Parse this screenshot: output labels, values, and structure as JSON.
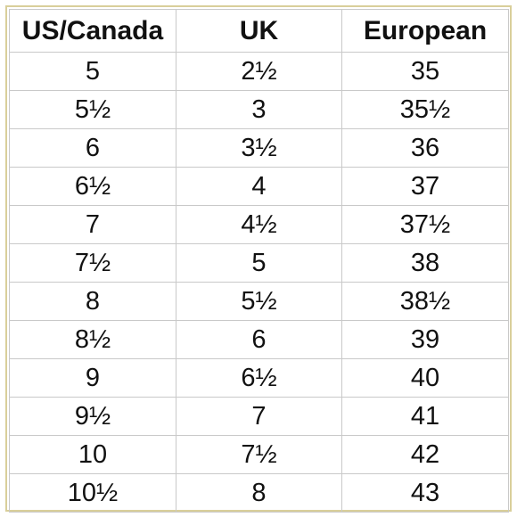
{
  "table": {
    "headers": [
      "US/Canada",
      "UK",
      "European"
    ],
    "rows": [
      [
        "5",
        "2½",
        "35"
      ],
      [
        "5½",
        "3",
        "35½"
      ],
      [
        "6",
        "3½",
        "36"
      ],
      [
        "6½",
        "4",
        "37"
      ],
      [
        "7",
        "4½",
        "37½"
      ],
      [
        "7½",
        "5",
        "38"
      ],
      [
        "8",
        "5½",
        "38½"
      ],
      [
        "8½",
        "6",
        "39"
      ],
      [
        "9",
        "6½",
        "40"
      ],
      [
        "9½",
        "7",
        "41"
      ],
      [
        "10",
        "7½",
        "42"
      ],
      [
        "10½",
        "8",
        "43"
      ]
    ]
  },
  "colors": {
    "frame_border": "#d9cf9a",
    "grid_lines": "#c9c9c9",
    "text": "#111111"
  }
}
